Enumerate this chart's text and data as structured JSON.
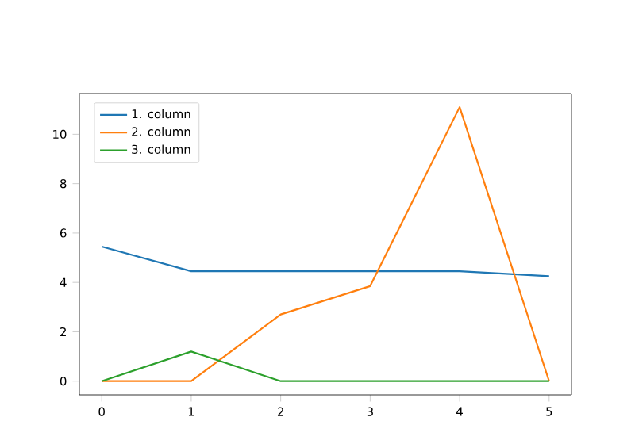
{
  "chart_data": {
    "type": "line",
    "x": [
      0,
      1,
      2,
      3,
      4,
      5
    ],
    "series": [
      {
        "name": "1. column",
        "color": "#1f77b4",
        "values": [
          5.45,
          4.45,
          4.45,
          4.45,
          4.45,
          4.25
        ]
      },
      {
        "name": "2. column",
        "color": "#ff7f0e",
        "values": [
          0,
          0,
          2.7,
          3.85,
          11.1,
          0
        ]
      },
      {
        "name": "3. column",
        "color": "#2ca02c",
        "values": [
          0,
          1.2,
          0,
          0,
          0,
          0
        ]
      }
    ],
    "xlim": [
      -0.25,
      5.25
    ],
    "ylim": [
      -0.555,
      11.65
    ],
    "xticks": [
      0,
      1,
      2,
      3,
      4,
      5
    ],
    "yticks": [
      0,
      2,
      4,
      6,
      8,
      10
    ],
    "grid": false,
    "legend": "top left",
    "marker": "none",
    "line_style": "solid"
  }
}
